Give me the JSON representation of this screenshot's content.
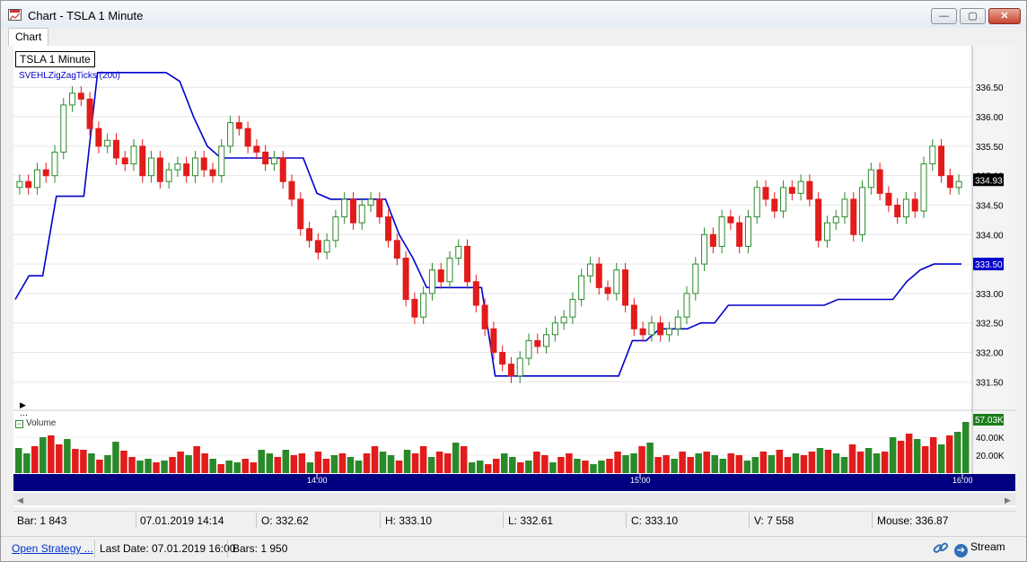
{
  "window": {
    "title": "Chart - TSLA 1 Minute",
    "minimize_label": "—",
    "maximize_label": "▢",
    "close_label": "✕"
  },
  "tabs": [
    {
      "label": "Chart"
    }
  ],
  "chart": {
    "symbol_label": "TSLA 1 Minute",
    "indicator_label": "SVEHLZigZagTicks (200)",
    "volume_label": "Volume",
    "price_axis_ticks": [
      "336.50",
      "336.00",
      "335.50",
      "335.00",
      "334.50",
      "334.00",
      "333.50",
      "333.00",
      "332.50",
      "332.00",
      "331.50"
    ],
    "last_price_tag": "334.93",
    "zigzag_tag": "333.50",
    "volume_axis_ticks": [
      "40.00K",
      "20.00K"
    ],
    "last_volume_tag": "57.03K",
    "time_ticks": [
      "14:00",
      "15:00",
      "16:00"
    ]
  },
  "chart_data": {
    "type": "candlestick",
    "title": "TSLA 1 Minute",
    "ylim": [
      331.2,
      336.9
    ],
    "y_ticks": [
      331.5,
      332.0,
      332.5,
      333.0,
      333.5,
      334.0,
      334.5,
      335.0,
      335.5,
      336.0,
      336.5
    ],
    "x_ticks": [
      "14:00",
      "15:00",
      "16:00"
    ],
    "last_close": 334.93,
    "zigzag_last": 333.5,
    "closes": [
      334.9,
      334.8,
      335.1,
      335.0,
      335.4,
      336.2,
      336.4,
      336.3,
      335.8,
      335.5,
      335.6,
      335.3,
      335.2,
      335.5,
      335.0,
      335.3,
      334.9,
      335.1,
      335.2,
      335.0,
      335.3,
      335.1,
      335.0,
      335.5,
      335.9,
      335.8,
      335.5,
      335.4,
      335.2,
      335.3,
      334.9,
      334.6,
      334.1,
      333.9,
      333.7,
      333.9,
      334.3,
      334.6,
      334.2,
      334.5,
      334.6,
      334.3,
      333.9,
      333.6,
      332.9,
      332.6,
      333.0,
      333.4,
      333.2,
      333.6,
      333.8,
      333.2,
      332.8,
      332.4,
      332.0,
      331.8,
      331.6,
      331.9,
      332.2,
      332.1,
      332.3,
      332.5,
      332.6,
      332.9,
      333.3,
      333.5,
      333.1,
      333.0,
      333.4,
      332.8,
      332.4,
      332.3,
      332.5,
      332.3,
      332.4,
      332.6,
      333.0,
      333.5,
      334.0,
      333.8,
      334.3,
      334.2,
      333.8,
      334.3,
      334.8,
      334.6,
      334.4,
      334.8,
      334.7,
      334.9,
      334.6,
      333.9,
      334.2,
      334.3,
      334.6,
      334.0,
      334.8,
      335.1,
      334.7,
      334.5,
      334.3,
      334.6,
      334.4,
      335.2,
      335.5,
      335.0,
      334.8,
      334.9
    ],
    "zigzag": [
      332.9,
      333.3,
      333.3,
      334.65,
      334.65,
      334.65,
      336.75,
      336.75,
      336.75,
      336.75,
      336.75,
      336.75,
      336.6,
      336.0,
      335.5,
      335.3,
      335.3,
      335.3,
      335.3,
      335.3,
      335.3,
      335.3,
      334.7,
      334.6,
      334.6,
      334.6,
      334.6,
      334.6,
      334.0,
      333.6,
      333.1,
      333.1,
      333.1,
      333.1,
      333.1,
      331.6,
      331.6,
      331.6,
      331.6,
      331.6,
      331.6,
      331.6,
      331.6,
      331.6,
      331.6,
      332.2,
      332.2,
      332.4,
      332.4,
      332.4,
      332.5,
      332.5,
      332.8,
      332.8,
      332.8,
      332.8,
      332.8,
      332.8,
      332.8,
      332.8,
      332.9,
      332.9,
      332.9,
      332.9,
      332.9,
      333.2,
      333.4,
      333.5,
      333.5,
      333.5
    ],
    "volumes_k": [
      28,
      22,
      30,
      40,
      42,
      32,
      38,
      27,
      26,
      22,
      15,
      20,
      35,
      25,
      18,
      14,
      16,
      12,
      14,
      18,
      24,
      20,
      30,
      22,
      16,
      10,
      14,
      12,
      16,
      12,
      26,
      22,
      18,
      26,
      20,
      22,
      12,
      24,
      16,
      20,
      22,
      18,
      14,
      22,
      30,
      24,
      20,
      14,
      26,
      22,
      30,
      18,
      24,
      22,
      34,
      30,
      12,
      14,
      10,
      16,
      22,
      18,
      12,
      14,
      24,
      20,
      12,
      18,
      22,
      16,
      14,
      10,
      14,
      16,
      24,
      20,
      22,
      30,
      34,
      18,
      20,
      16,
      24,
      18,
      22,
      24,
      20,
      16,
      22,
      20,
      14,
      18,
      24,
      20,
      26,
      18,
      22,
      20,
      24,
      28,
      26,
      22,
      18,
      32,
      24,
      28,
      22,
      24,
      40,
      36,
      44,
      38,
      30,
      40,
      32,
      42,
      46,
      57.03
    ]
  },
  "status": {
    "bar": "Bar: 1 843",
    "datetime": "07.01.2019 14:14",
    "open": "O: 332.62",
    "high": "H: 333.10",
    "low": "L: 332.61",
    "close": "C: 333.10",
    "volume": "V: 7 558",
    "mouse": "Mouse: 336.87"
  },
  "footer": {
    "strategy_link": "Open Strategy ...",
    "last_date": "Last Date: 07.01.2019 16:00",
    "bars": "Bars: 1 950",
    "stream_label": "Stream"
  },
  "colors": {
    "up": "#2a8a2a",
    "down": "#e21b1b",
    "zigzag": "#0000cc",
    "time_axis": "#000080",
    "last_price_tag_bg": "#000000",
    "zigzag_tag_bg": "#0000cc",
    "volume_tag_bg": "#1b7d1b"
  }
}
